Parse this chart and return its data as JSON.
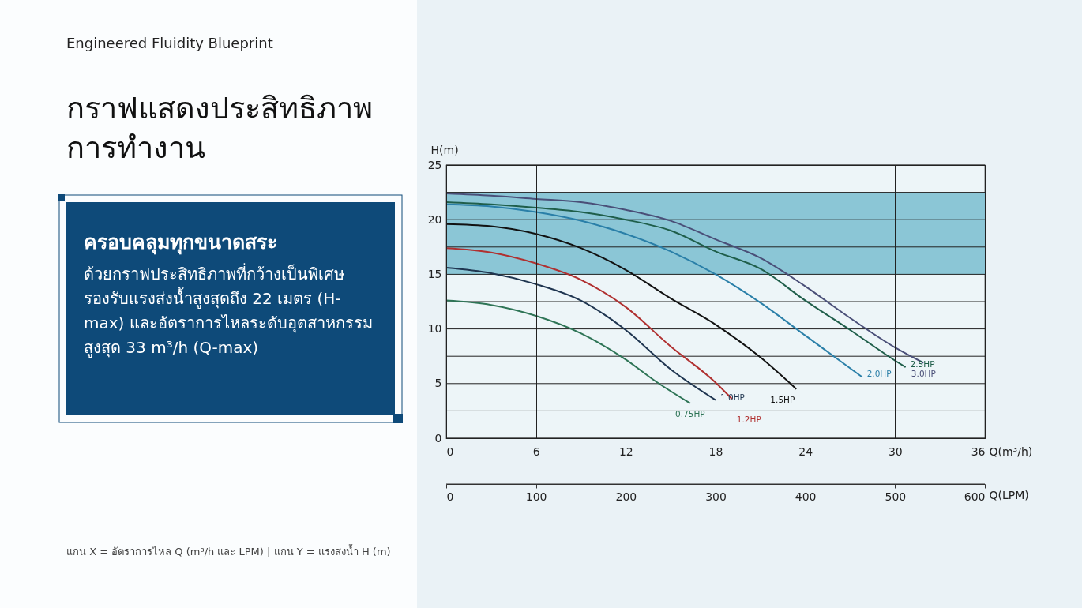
{
  "chart_data": {
    "type": "line",
    "title": "กราฟแสดงประสิทธิภาพการทำงาน",
    "subtitle": "Engineered Fluidity Blueprint",
    "xlabel": "Q(m³/h)",
    "ylabel": "H(m)",
    "x2label": "Q(LPM)",
    "annotations": [
      "ครอบคลุมทุกขนาดสระ",
      "ด้วยกราฟประสิทธิภาพที่กว้างเป็นพิเศษ รองรับแรงส่งน้ำสูงสุดถึง 22 เมตร (H-max) และอัตราการไหลระดับอุตสาหกรรมสูงสุด 33 m³/h (Q-max)",
      "แกน X = อัตราการไหล Q (m³/h และ LPM) | แกน Y = แรงส่งน้ำ H (m)"
    ],
    "xlim": [
      0,
      36
    ],
    "xticks": [
      0,
      6,
      12,
      18,
      24,
      30,
      36
    ],
    "ylim": [
      0,
      25
    ],
    "yticks": [
      0,
      {
        "value": 2.5,
        "label": null
      },
      5,
      {
        "value": 7.5,
        "label": null
      },
      10,
      {
        "value": 12.5,
        "label": null
      },
      15,
      {
        "value": 17.5,
        "label": null
      },
      20,
      {
        "value": 22.5,
        "label": null
      },
      25
    ],
    "x2lim": [
      0,
      600
    ],
    "x2ticks": [
      0,
      100,
      200,
      300,
      400,
      500,
      600
    ],
    "grid": true,
    "line_style": "solid",
    "bands": [
      {
        "axis": "y",
        "from": 15,
        "to": 22.5,
        "color": "#86c3d4"
      }
    ],
    "series": [
      {
        "name": "0.75HP",
        "color": "#2e7456",
        "x": [
          0,
          3,
          6,
          9,
          12,
          14,
          16.3
        ],
        "values": [
          12.6,
          12.2,
          11.2,
          9.6,
          7.2,
          5.2,
          3.2
        ]
      },
      {
        "name": "1.0HP",
        "color": "#1f3550",
        "x": [
          0,
          3,
          6,
          9,
          12,
          15,
          18
        ],
        "values": [
          15.6,
          15.1,
          14.1,
          12.6,
          9.9,
          6.3,
          3.5
        ]
      },
      {
        "name": "1.2HP",
        "color": "#b03030",
        "x": [
          0,
          3,
          6,
          9,
          12,
          15,
          18,
          19.1
        ],
        "values": [
          17.4,
          17.0,
          16.0,
          14.5,
          12.0,
          8.4,
          5.1,
          3.6
        ]
      },
      {
        "name": "1.5HP",
        "color": "#111111",
        "x": [
          0,
          3,
          6,
          9,
          12,
          15,
          18,
          21,
          23.4
        ],
        "values": [
          19.6,
          19.4,
          18.7,
          17.4,
          15.4,
          12.8,
          10.4,
          7.4,
          4.5
        ]
      },
      {
        "name": "2.0HP",
        "color": "#2a7fa8",
        "x": [
          0,
          3,
          6,
          9,
          12,
          15,
          18,
          21,
          24,
          26.5,
          27.8
        ],
        "values": [
          21.4,
          21.2,
          20.7,
          19.9,
          18.7,
          17.1,
          15.0,
          12.4,
          9.4,
          6.9,
          5.6
        ]
      },
      {
        "name": "2.5HP",
        "color": "#1f5e4a",
        "x": [
          0,
          3,
          6,
          9,
          12,
          15,
          18,
          21,
          24,
          27,
          30,
          30.7
        ],
        "values": [
          21.6,
          21.4,
          21.1,
          20.7,
          20.0,
          19.0,
          17.1,
          15.5,
          12.6,
          9.9,
          7.1,
          6.5
        ]
      },
      {
        "name": "3.0HP",
        "color": "#4a4f78",
        "x": [
          0,
          3,
          6,
          9,
          12,
          15,
          18,
          21,
          24,
          27,
          30,
          31.9
        ],
        "values": [
          22.4,
          22.2,
          21.9,
          21.6,
          20.9,
          19.9,
          18.2,
          16.5,
          13.9,
          11.0,
          8.3,
          6.9
        ]
      }
    ]
  }
}
